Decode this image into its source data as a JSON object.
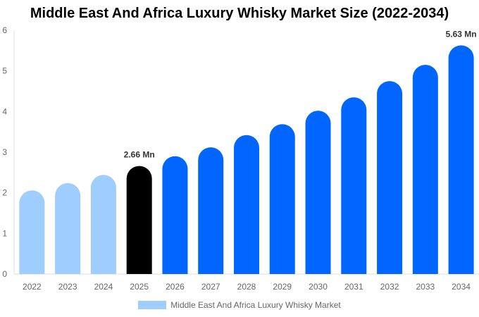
{
  "chart_data": {
    "type": "bar",
    "title": "Middle East And Africa Luxury Whisky Market Size (2022-2034)",
    "categories": [
      "2022",
      "2023",
      "2024",
      "2025",
      "2026",
      "2027",
      "2028",
      "2029",
      "2030",
      "2031",
      "2032",
      "2033",
      "2034"
    ],
    "series": [
      {
        "name": "Middle East And Africa Luxury Whisky Market",
        "values": [
          2.06,
          2.24,
          2.44,
          2.66,
          2.9,
          3.12,
          3.42,
          3.69,
          4.02,
          4.35,
          4.75,
          5.15,
          5.63
        ]
      }
    ],
    "data_labels": {
      "3": "2.66 Mn",
      "12": "5.63 Mn"
    },
    "ylim": [
      0,
      6
    ],
    "yticks": [
      0,
      1,
      2,
      3,
      4,
      5,
      6
    ],
    "grid": false,
    "legend_position": "bottom",
    "colors": {
      "historical": "#9fcdfd",
      "current": "#000000",
      "forecast": "#0066ff"
    },
    "bar_color_group": [
      "historical",
      "historical",
      "historical",
      "current",
      "forecast",
      "forecast",
      "forecast",
      "forecast",
      "forecast",
      "forecast",
      "forecast",
      "forecast",
      "forecast"
    ]
  }
}
